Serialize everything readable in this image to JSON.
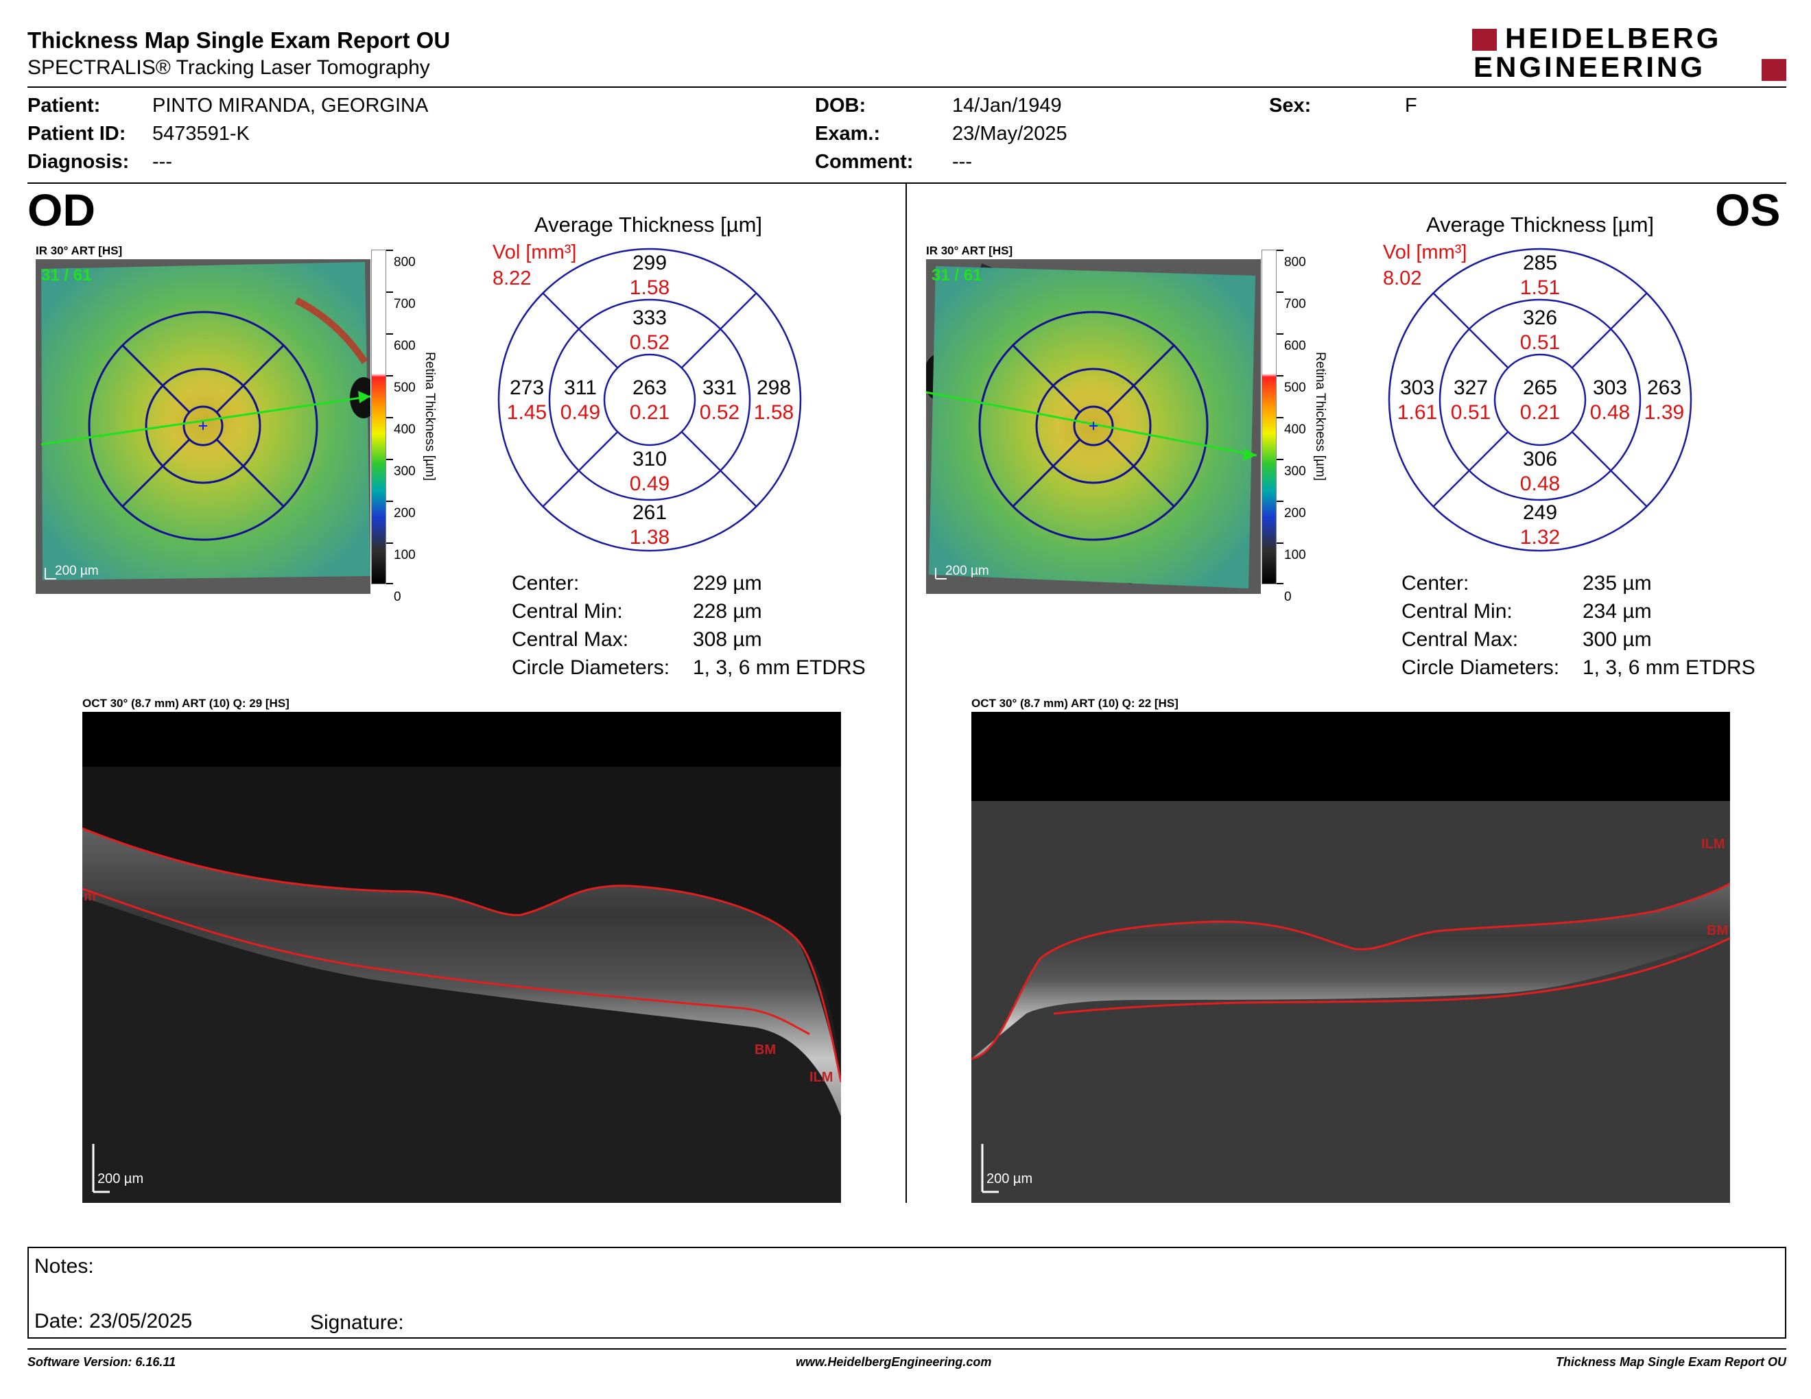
{
  "header": {
    "title": "Thickness Map Single Exam Report OU",
    "subtitle": "SPECTRALIS® Tracking Laser Tomography",
    "logo_top": "HEIDELBERG",
    "logo_bottom": "ENGINEERING",
    "logo_color": "#a3192e"
  },
  "patient": {
    "patient_label": "Patient:",
    "patient_value": "PINTO MIRANDA, GEORGINA",
    "id_label": "Patient ID:",
    "id_value": "5473591-K",
    "diagnosis_label": "Diagnosis:",
    "diagnosis_value": "---",
    "dob_label": "DOB:",
    "dob_value": "14/Jan/1949",
    "exam_label": "Exam.:",
    "exam_value": "23/May/2025",
    "comment_label": "Comment:",
    "comment_value": "---",
    "sex_label": "Sex:",
    "sex_value": "F"
  },
  "colorbar": {
    "ticks": [
      "800",
      "700",
      "600",
      "500",
      "400",
      "300",
      "200",
      "100",
      "0"
    ],
    "label": "Retina Thickness [µm]"
  },
  "od": {
    "eye": "OD",
    "ir_label": "IR 30° ART [HS]",
    "frame": "31 / 61",
    "scale": "200 µm",
    "etdrs_title": "Average Thickness [µm]",
    "vol_label": "Vol [mm³]",
    "vol_total": "8.22",
    "sectors": {
      "outer_sup": {
        "t": "299",
        "v": "1.58"
      },
      "inner_sup": {
        "t": "333",
        "v": "0.52"
      },
      "outer_left": {
        "t": "273",
        "v": "1.45"
      },
      "inner_left": {
        "t": "311",
        "v": "0.49"
      },
      "center": {
        "t": "263",
        "v": "0.21"
      },
      "inner_right": {
        "t": "331",
        "v": "0.52"
      },
      "outer_right": {
        "t": "298",
        "v": "1.58"
      },
      "inner_inf": {
        "t": "310",
        "v": "0.49"
      },
      "outer_inf": {
        "t": "261",
        "v": "1.38"
      }
    },
    "stats": [
      {
        "label": "Center:",
        "value": "229 µm"
      },
      {
        "label": "Central Min:",
        "value": "228 µm"
      },
      {
        "label": "Central Max:",
        "value": "308 µm"
      },
      {
        "label": "Circle Diameters:",
        "value": "1, 3, 6 mm ETDRS"
      }
    ],
    "oct_label": "OCT 30° (8.7 mm) ART (10) Q: 29 [HS]",
    "oct_scale": "200 µm",
    "ilm_tag": "ILM",
    "bm_tag": "BM",
    "edge_tag": "m"
  },
  "os": {
    "eye": "OS",
    "ir_label": "IR 30° ART [HS]",
    "frame": "31 / 61",
    "scale": "200 µm",
    "etdrs_title": "Average Thickness [µm]",
    "vol_label": "Vol [mm³]",
    "vol_total": "8.02",
    "sectors": {
      "outer_sup": {
        "t": "285",
        "v": "1.51"
      },
      "inner_sup": {
        "t": "326",
        "v": "0.51"
      },
      "outer_left": {
        "t": "303",
        "v": "1.61"
      },
      "inner_left": {
        "t": "327",
        "v": "0.51"
      },
      "center": {
        "t": "265",
        "v": "0.21"
      },
      "inner_right": {
        "t": "303",
        "v": "0.48"
      },
      "outer_right": {
        "t": "263",
        "v": "1.39"
      },
      "inner_inf": {
        "t": "306",
        "v": "0.48"
      },
      "outer_inf": {
        "t": "249",
        "v": "1.32"
      }
    },
    "stats": [
      {
        "label": "Center:",
        "value": "235 µm"
      },
      {
        "label": "Central Min:",
        "value": "234 µm"
      },
      {
        "label": "Central Max:",
        "value": "300 µm"
      },
      {
        "label": "Circle Diameters:",
        "value": "1, 3, 6 mm ETDRS"
      }
    ],
    "oct_label": "OCT 30° (8.7 mm) ART (10) Q: 22 [HS]",
    "oct_scale": "200 µm",
    "ilm_tag": "ILM",
    "bm_tag": "BM"
  },
  "notes": {
    "notes_label": "Notes:",
    "date_label": "Date: 23/05/2025",
    "signature_label": "Signature:"
  },
  "footer": {
    "version": "Software Version: 6.16.11",
    "website": "www.HeidelbergEngineering.com",
    "report": "Thickness Map Single Exam Report OU"
  }
}
